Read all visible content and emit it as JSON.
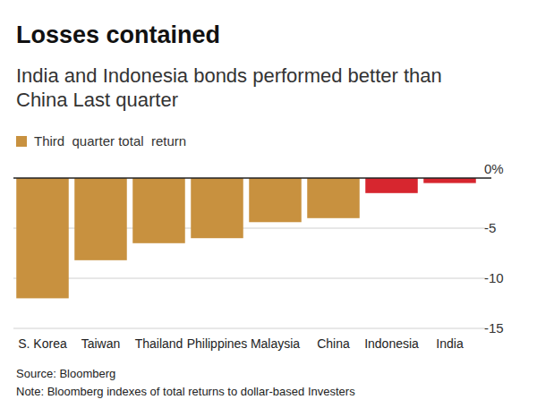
{
  "chart_data": {
    "type": "bar",
    "title": "Losses contained",
    "subtitle": "India and Indonesia bonds performed better than China Last quarter",
    "legend_label": "Third  quarter total  return",
    "legend_color": "#c8913f",
    "categories": [
      "S. Korea",
      "Taiwan",
      "Thailand",
      "Philippines",
      "Malaysia",
      "China",
      "Indonesia",
      "India"
    ],
    "values": [
      -12.0,
      -8.2,
      -6.5,
      -6.0,
      -4.4,
      -4.0,
      -1.5,
      -0.5
    ],
    "colors": [
      "#c8913f",
      "#c8913f",
      "#c8913f",
      "#c8913f",
      "#c8913f",
      "#c8913f",
      "#d7262f",
      "#d7262f"
    ],
    "ylim": [
      -15,
      0
    ],
    "yticks": [
      {
        "value": 0,
        "label": "0%"
      },
      -5,
      -10,
      -15
    ],
    "grid": true,
    "source": "Source: Bloomberg",
    "note": "Note: Bloomberg indexes of total returns to dollar-based Investers"
  }
}
